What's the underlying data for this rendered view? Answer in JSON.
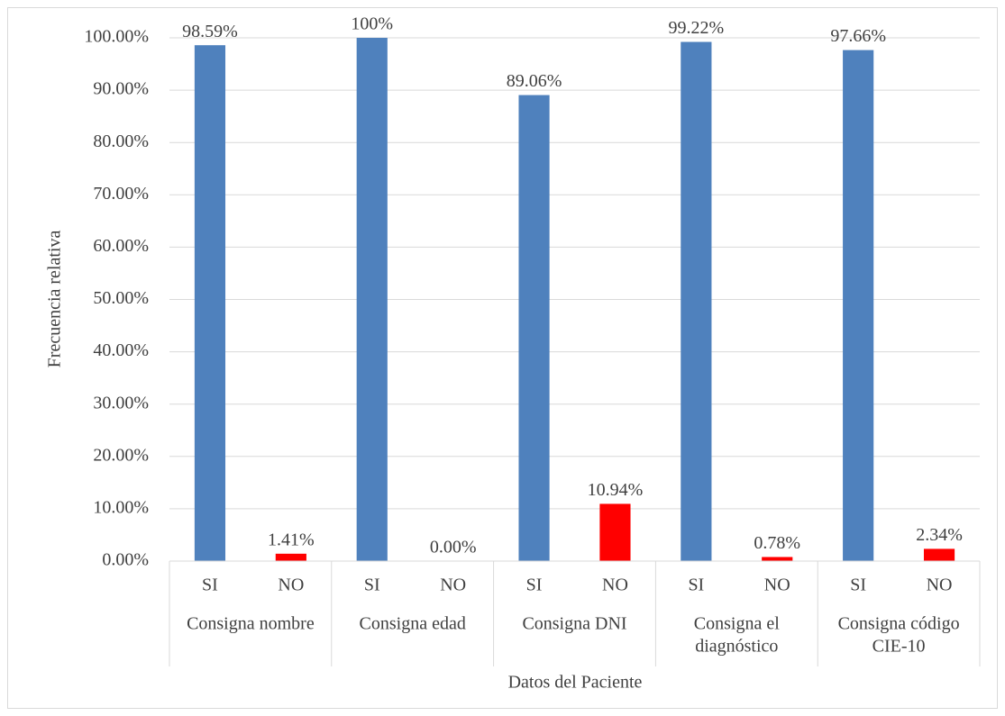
{
  "chart_data": {
    "type": "bar",
    "x_label": "Datos del Paciente",
    "y_label": "Frecuencia relativa",
    "categories": [
      "SI",
      "NO",
      "SI",
      "NO",
      "SI",
      "NO",
      "SI",
      "NO",
      "SI",
      "NO"
    ],
    "groups": [
      [
        "Consigna nombre"
      ],
      [
        "Consigna edad"
      ],
      [
        "Consigna DNI"
      ],
      [
        "Consigna el",
        "diagnóstico"
      ],
      [
        "Consigna código",
        "CIE-10"
      ]
    ],
    "values": [
      98.59,
      1.41,
      100,
      0,
      89.06,
      10.94,
      99.22,
      0.78,
      97.66,
      2.34
    ],
    "value_labels": [
      "98.59%",
      "1.41%",
      "100%",
      "0.00%",
      "89.06%",
      "10.94%",
      "99.22%",
      "0.78%",
      "97.66%",
      "2.34%"
    ],
    "colors": [
      "#4f81bd",
      "#ff0000",
      "#4f81bd",
      "#ff0000",
      "#4f81bd",
      "#ff0000",
      "#4f81bd",
      "#ff0000",
      "#4f81bd",
      "#ff0000"
    ],
    "ylim": [
      0,
      100
    ],
    "yticks": [
      {
        "value": 0,
        "label": "0.00%"
      },
      {
        "value": 10,
        "label": "10.00%"
      },
      {
        "value": 20,
        "label": "20.00%"
      },
      {
        "value": 30,
        "label": "30.00%"
      },
      {
        "value": 40,
        "label": "40.00%"
      },
      {
        "value": 50,
        "label": "50.00%"
      },
      {
        "value": 60,
        "label": "60.00%"
      },
      {
        "value": 70,
        "label": "70.00%"
      },
      {
        "value": 80,
        "label": "80.00%"
      },
      {
        "value": 90,
        "label": "90.00%"
      },
      {
        "value": 100,
        "label": "100.00%"
      }
    ],
    "grid": true
  }
}
